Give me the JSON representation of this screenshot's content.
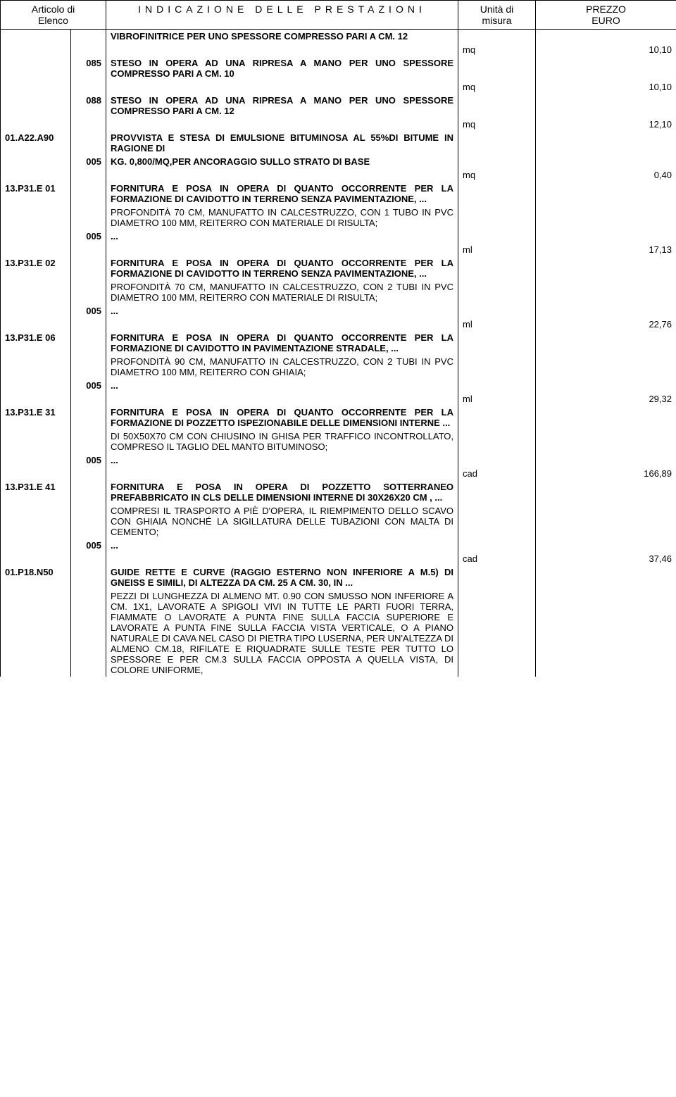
{
  "header": {
    "col1_line1": "Articolo di",
    "col1_line2": "Elenco",
    "col2": "INDICAZIONE DELLE PRESTAZIONI",
    "col3_line1": "Unità di",
    "col3_line2": "misura",
    "col4_line1": "PREZZO",
    "col4_line2": "EURO"
  },
  "rows": [
    {
      "type": "title",
      "code": "",
      "sub": "",
      "text": "VIBROFINITRICE PER UNO SPESSORE COMPRESSO PARI A CM. 12"
    },
    {
      "type": "price",
      "unit": "mq",
      "price": "10,10"
    },
    {
      "type": "title",
      "code": "",
      "sub": "085",
      "text": "STESO IN OPERA AD UNA RIPRESA A MANO PER UNO SPESSORE COMPRESSO PARI A CM. 10"
    },
    {
      "type": "price",
      "unit": "mq",
      "price": "10,10"
    },
    {
      "type": "title",
      "code": "",
      "sub": "088",
      "text": "STESO IN OPERA AD UNA RIPRESA A MANO PER UNO SPESSORE COMPRESSO PARI A CM. 12"
    },
    {
      "type": "price",
      "unit": "mq",
      "price": "12,10"
    },
    {
      "type": "title",
      "code": "01.A22.A90",
      "sub": "",
      "text": "PROVVISTA E STESA DI EMULSIONE BITUMINOSA AL 55%DI BITUME IN RAGIONE DI"
    },
    {
      "type": "title",
      "code": "",
      "sub": "005",
      "text": "KG. 0,800/MQ,PER ANCORAGGIO SULLO STRATO DI BASE"
    },
    {
      "type": "price",
      "unit": "mq",
      "price": "0,40"
    },
    {
      "type": "title",
      "code": "13.P31.E 01",
      "sub": "",
      "text": "FORNITURA E POSA IN OPERA DI QUANTO OCCORRENTE PER LA FORMAZIONE DI CAVIDOTTO IN TERRENO SENZA PAVIMENTAZIONE, ..."
    },
    {
      "type": "detail",
      "text": " PROFONDITÀ 70 CM, MANUFATTO IN CALCESTRUZZO, CON 1 TUBO IN PVC DIAMETRO 100 MM, REITERRO CON MATERIALE DI RISULTA;"
    },
    {
      "type": "subonly",
      "sub": "005",
      "text": "..."
    },
    {
      "type": "price",
      "unit": "ml",
      "price": "17,13"
    },
    {
      "type": "title",
      "code": "13.P31.E 02",
      "sub": "",
      "text": "FORNITURA E POSA IN OPERA DI QUANTO OCCORRENTE PER LA FORMAZIONE DI CAVIDOTTO IN TERRENO SENZA PAVIMENTAZIONE, ..."
    },
    {
      "type": "detail",
      "text": " PROFONDITÀ 70 CM, MANUFATTO IN CALCESTRUZZO, CON 2 TUBI IN PVC DIAMETRO 100 MM, REITERRO CON MATERIALE DI RISULTA;"
    },
    {
      "type": "subonly",
      "sub": "005",
      "text": "..."
    },
    {
      "type": "price",
      "unit": "ml",
      "price": "22,76"
    },
    {
      "type": "title",
      "code": "13.P31.E 06",
      "sub": "",
      "text": "FORNITURA E POSA IN OPERA DI QUANTO OCCORRENTE PER LA FORMAZIONE DI CAVIDOTTO IN PAVIMENTAZIONE STRADALE, ..."
    },
    {
      "type": "detail",
      "text": " PROFONDITÀ 90 CM, MANUFATTO IN CALCESTRUZZO, CON 2 TUBI IN PVC DIAMETRO 100 MM, REITERRO CON GHIAIA;"
    },
    {
      "type": "subonly",
      "sub": "005",
      "text": "..."
    },
    {
      "type": "price",
      "unit": "ml",
      "price": "29,32"
    },
    {
      "type": "title",
      "code": "13.P31.E 31",
      "sub": "",
      "text": "FORNITURA E POSA IN OPERA DI QUANTO OCCORRENTE PER LA FORMAZIONE DI POZZETTO ISPEZIONABILE DELLE DIMENSIONI INTERNE ..."
    },
    {
      "type": "detail",
      "text": " DI 50X50X70 CM CON CHIUSINO IN GHISA PER TRAFFICO INCONTROLLATO, COMPRESO IL TAGLIO DEL MANTO BITUMINOSO;"
    },
    {
      "type": "subonly",
      "sub": "005",
      "text": "..."
    },
    {
      "type": "price",
      "unit": "cad",
      "price": "166,89"
    },
    {
      "type": "title",
      "code": "13.P31.E 41",
      "sub": "",
      "text": "FORNITURA E POSA IN OPERA DI POZZETTO SOTTERRANEO PREFABBRICATO IN CLS DELLE DIMENSIONI INTERNE DI 30X26X20 CM , ..."
    },
    {
      "type": "detail",
      "text": " COMPRESI IL TRASPORTO A PIÈ D'OPERA, IL RIEMPIMENTO DELLO SCAVO CON GHIAIA NONCHÉ LA SIGILLATURA DELLE TUBAZIONI CON MALTA DI CEMENTO;"
    },
    {
      "type": "subonly",
      "sub": "005",
      "text": "..."
    },
    {
      "type": "price",
      "unit": "cad",
      "price": "37,46"
    },
    {
      "type": "title",
      "code": "01.P18.N50",
      "sub": "",
      "text": "GUIDE RETTE E CURVE (RAGGIO ESTERNO NON INFERIORE A M.5) DI GNEISS E SIMILI, DI ALTEZZA DA CM. 25 A CM. 30, IN ..."
    },
    {
      "type": "detail",
      "text": " PEZZI DI LUNGHEZZA DI ALMENO MT. 0.90 CON SMUSSO NON INFERIORE A CM. 1X1, LAVORATE A SPIGOLI VIVI IN TUTTE LE PARTI FUORI TERRA, FIAMMATE O LAVORATE A PUNTA FINE SULLA FACCIA SUPERIORE E LAVORATE A PUNTA FINE SULLA FACCIA VISTA VERTICALE, O A PIANO NATURALE DI CAVA NEL CASO DI PIETRA TIPO LUSERNA, PER UN'ALTEZZA DI ALMENO CM.18, RIFILATE E RIQUADRATE SULLE TESTE PER TUTTO LO SPESSORE E PER CM.3 SULLA FACCIA OPPOSTA A QUELLA VISTA, DI COLORE UNIFORME,"
    }
  ]
}
